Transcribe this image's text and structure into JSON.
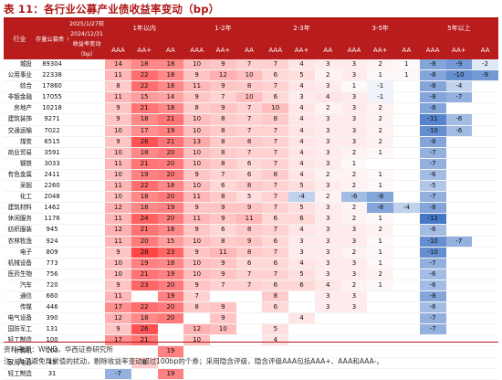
{
  "title": "表 11：各行业公募产业债收益率变动（bp）",
  "colors": {
    "header_bg": "#b81c1c",
    "title": "#b01717",
    "pos": "#e24a4a",
    "neg": "#3f7bc7"
  },
  "header": {
    "industry": "行业",
    "balance": "存量公募债（亿元）",
    "change_period": "2025/1/27较2024/12/31收益率变动（bp）",
    "tenor_groups": [
      "1年以内",
      "1-2年",
      "2-3年",
      "3-5年",
      "5年以上"
    ],
    "ratings": [
      "AAA",
      "AA+",
      "AA",
      "AAA",
      "AA+",
      "AA",
      "AAA",
      "AA+",
      "AA",
      "AAA",
      "AA+",
      "AA",
      "AAA",
      "AA+",
      "AA"
    ]
  },
  "rows": [
    {
      "ind": "城投",
      "bal": "89304",
      "v": [
        "14",
        "18",
        "18",
        "10",
        "9",
        "7",
        "7",
        "4",
        "3",
        "3",
        "2",
        "1",
        "-8",
        "-9",
        "-2"
      ]
    },
    {
      "ind": "公用事业",
      "bal": "22338",
      "v": [
        "11",
        "22",
        "18",
        "9",
        "12",
        "10",
        "6",
        "5",
        "2",
        "3",
        "1",
        "1",
        "-8",
        "-10",
        "-9"
      ]
    },
    {
      "ind": "综合",
      "bal": "17860",
      "v": [
        "8",
        "22",
        "18",
        "11",
        "9",
        "8",
        "7",
        "4",
        "3",
        "1",
        "-1",
        "",
        "-8",
        "-4",
        ""
      ]
    },
    {
      "ind": "非银金融",
      "bal": "17055",
      "v": [
        "11",
        "15",
        "14",
        "9",
        "7",
        "10",
        "6",
        "3",
        "4",
        "3",
        "-1",
        "",
        "-8",
        "-7",
        ""
      ]
    },
    {
      "ind": "房地产",
      "bal": "10218",
      "v": [
        "9",
        "21",
        "18",
        "8",
        "9",
        "7",
        "10",
        "4",
        "2",
        "3",
        "2",
        "",
        "-8",
        "",
        ""
      ]
    },
    {
      "ind": "建筑装饰",
      "bal": "9271",
      "v": [
        "9",
        "18",
        "21",
        "10",
        "8",
        "7",
        "8",
        "4",
        "3",
        "3",
        "2",
        "",
        "-11",
        "-6",
        ""
      ]
    },
    {
      "ind": "交通运输",
      "bal": "7022",
      "v": [
        "10",
        "17",
        "19",
        "10",
        "8",
        "7",
        "7",
        "4",
        "3",
        "3",
        "2",
        "",
        "-10",
        "-6",
        ""
      ]
    },
    {
      "ind": "煤炭",
      "bal": "6515",
      "v": [
        "9",
        "26",
        "21",
        "13",
        "8",
        "8",
        "7",
        "4",
        "3",
        "3",
        "2",
        "",
        "-8",
        "",
        ""
      ]
    },
    {
      "ind": "商业贸易",
      "bal": "3591",
      "v": [
        "10",
        "18",
        "20",
        "10",
        "8",
        "7",
        "7",
        "4",
        "3",
        "2",
        "1",
        "",
        "-7",
        "",
        ""
      ]
    },
    {
      "ind": "钢铁",
      "bal": "3033",
      "v": [
        "11",
        "21",
        "20",
        "10",
        "8",
        "6",
        "7",
        "4",
        "3",
        "1",
        "",
        "",
        "-7",
        "",
        ""
      ]
    },
    {
      "ind": "有色金属",
      "bal": "2411",
      "v": [
        "10",
        "19",
        "20",
        "9",
        "7",
        "6",
        "8",
        "4",
        "2",
        "2",
        "1",
        "",
        "-6",
        "",
        ""
      ]
    },
    {
      "ind": "采掘",
      "bal": "2260",
      "v": [
        "11",
        "22",
        "18",
        "10",
        "6",
        "8",
        "7",
        "5",
        "3",
        "2",
        "1",
        "",
        "-5",
        "",
        ""
      ]
    },
    {
      "ind": "化工",
      "bal": "2048",
      "v": [
        "10",
        "18",
        "20",
        "11",
        "8",
        "5",
        "7",
        "-4",
        "2",
        "-6",
        "-8",
        "",
        "-7",
        "",
        ""
      ]
    },
    {
      "ind": "建筑材料",
      "bal": "1462",
      "v": [
        "12",
        "18",
        "19",
        "9",
        "9",
        "9",
        "7",
        "5",
        "3",
        "2",
        "-8",
        "-4",
        "-8",
        "",
        ""
      ]
    },
    {
      "ind": "休闲服务",
      "bal": "1176",
      "v": [
        "11",
        "24",
        "20",
        "11",
        "9",
        "11",
        "6",
        "6",
        "3",
        "2",
        "1",
        "",
        "-12",
        "",
        ""
      ]
    },
    {
      "ind": "纺织服装",
      "bal": "945",
      "v": [
        "12",
        "21",
        "18",
        "9",
        "6",
        "8",
        "7",
        "4",
        "3",
        "3",
        "2",
        "",
        "-6",
        "",
        ""
      ]
    },
    {
      "ind": "农林牧渔",
      "bal": "924",
      "v": [
        "11",
        "20",
        "15",
        "10",
        "8",
        "9",
        "6",
        "3",
        "3",
        "3",
        "1",
        "",
        "-10",
        "-7",
        ""
      ]
    },
    {
      "ind": "电子",
      "bal": "809",
      "v": [
        "9",
        "28",
        "23",
        "9",
        "11",
        "8",
        "7",
        "3",
        "3",
        "2",
        "1",
        "",
        "-10",
        "",
        ""
      ]
    },
    {
      "ind": "机械设备",
      "bal": "773",
      "v": [
        "10",
        "19",
        "18",
        "10",
        "9",
        "6",
        "6",
        "4",
        "3",
        "3",
        "1",
        "",
        "-7",
        "",
        ""
      ]
    },
    {
      "ind": "医药生物",
      "bal": "756",
      "v": [
        "10",
        "21",
        "19",
        "10",
        "9",
        "7",
        "7",
        "5",
        "3",
        "3",
        "2",
        "",
        "-6",
        "",
        ""
      ]
    },
    {
      "ind": "汽车",
      "bal": "720",
      "v": [
        "9",
        "23",
        "20",
        "9",
        "7",
        "7",
        "6",
        "6",
        "4",
        "2",
        "1",
        "",
        "-6",
        "",
        ""
      ]
    },
    {
      "ind": "通信",
      "bal": "660",
      "v": [
        "11",
        "",
        "19",
        "7",
        "",
        "",
        "8",
        "",
        "3",
        "3",
        "",
        "",
        "-8",
        "",
        ""
      ]
    },
    {
      "ind": "传媒",
      "bal": "446",
      "v": [
        "17",
        "22",
        "20",
        "8",
        "9",
        "",
        "6",
        "",
        "3",
        "3",
        "",
        "",
        "-6",
        "",
        ""
      ]
    },
    {
      "ind": "电气设备",
      "bal": "390",
      "v": [
        "12",
        "18",
        "20",
        "",
        "9",
        "",
        "",
        "4",
        "",
        "",
        "",
        "",
        "-7",
        "",
        ""
      ]
    },
    {
      "ind": "国防军工",
      "bal": "131",
      "v": [
        "9",
        "26",
        "",
        "12",
        "10",
        "",
        "5",
        "",
        "",
        "",
        "",
        "",
        "-7",
        "",
        ""
      ]
    },
    {
      "ind": "轻工制造",
      "bal": "100",
      "v": [
        "17",
        "21",
        "",
        "10",
        "",
        "",
        "4",
        "",
        "",
        "",
        "",
        "",
        "",
        "",
        ""
      ]
    },
    {
      "ind": "计算机",
      "bal": "100",
      "v": [
        "",
        "",
        "19",
        "",
        "",
        "",
        "",
        "",
        "",
        "",
        "",
        "",
        "",
        "",
        ""
      ]
    },
    {
      "ind": "家用电器",
      "bal": "45",
      "v": [
        "",
        "8",
        "",
        "",
        "",
        "",
        "",
        "",
        "",
        "",
        "",
        "",
        "",
        "",
        ""
      ]
    },
    {
      "ind": "轻工制造",
      "bal": "31",
      "v": [
        "-7",
        "",
        "19",
        "",
        "",
        "",
        "",
        "",
        "",
        "",
        "",
        "",
        "",
        "",
        ""
      ]
    }
  ],
  "footer": {
    "source": "资料来源：WIND，华西证券研究所",
    "note": "注：为了避免异常值的扰动，剔除收益率变动超过100bp的个券；采用隐含评级，隐含评级AAA包括AAA+、AAA和AAA-。"
  }
}
